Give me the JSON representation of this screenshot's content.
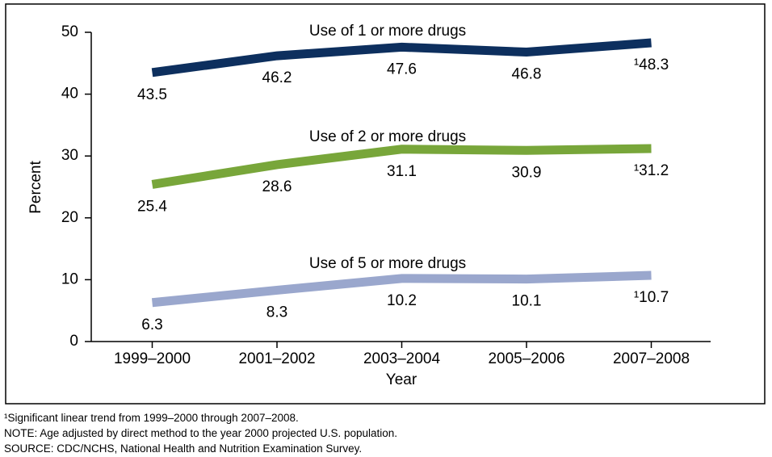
{
  "chart_data": {
    "type": "line",
    "categories": [
      "1999–2000",
      "2001–2002",
      "2003–2004",
      "2005–2006",
      "2007–2008"
    ],
    "series": [
      {
        "name": "Use of 1 or more drugs",
        "color": "#0d2f5e",
        "values": [
          43.5,
          46.2,
          47.6,
          46.8,
          48.3
        ],
        "value_labels": [
          "43.5",
          "46.2",
          "47.6",
          "46.8",
          "¹48.3"
        ]
      },
      {
        "name": "Use of 2 or more drugs",
        "color": "#78a63a",
        "values": [
          25.4,
          28.6,
          31.1,
          30.9,
          31.2
        ],
        "value_labels": [
          "25.4",
          "28.6",
          "31.1",
          "30.9",
          "¹31.2"
        ]
      },
      {
        "name": "Use of 5 or more drugs",
        "color": "#9aa7cd",
        "values": [
          6.3,
          8.3,
          10.2,
          10.1,
          10.7
        ],
        "value_labels": [
          "6.3",
          "8.3",
          "10.2",
          "10.1",
          "¹10.7"
        ]
      }
    ],
    "x_label": "Year",
    "y_label": "Percent",
    "ylim": [
      0,
      50
    ],
    "yticks": [
      0,
      10,
      20,
      30,
      40,
      50
    ],
    "notes": [
      "¹Significant linear trend from 1999–2000 through 2007–2008.",
      "NOTE: Age adjusted by direct method to the year 2000 projected U.S. population.",
      "SOURCE: CDC/NCHS, National Health and Nutrition Examination Survey."
    ]
  }
}
